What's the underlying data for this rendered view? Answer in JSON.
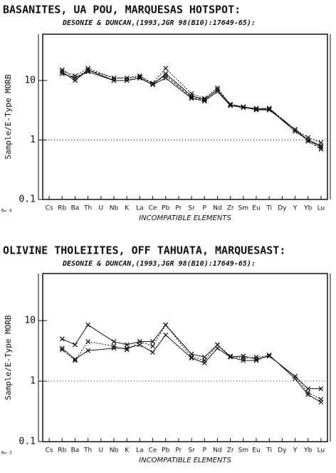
{
  "chart_data": [
    {
      "type": "line",
      "title": "BASANITES, UA POU, MARQUESAS HOTSPOT:",
      "subtitle": "DESONIE & DUNCAN,(1993,JGR 98(B10):17649-65):",
      "y_label": "Sample/E-Type MORB",
      "x_label": "INCOMPATIBLE ELEMENTS",
      "note": "N= 4",
      "categories": [
        "Cs",
        "Rb",
        "Ba",
        "Th",
        "U",
        "Nb",
        "K",
        "La",
        "Ce",
        "Pb",
        "Pr",
        "Sr",
        "P",
        "Nd",
        "Zr",
        "Sm",
        "Eu",
        "Ti",
        "Dy",
        "Y",
        "Yb",
        "Lu"
      ],
      "log_scale": true,
      "ylim": [
        0.1,
        60
      ],
      "yticks": [
        0.1,
        1,
        10
      ],
      "reference_line": 1,
      "color": "#111111",
      "series": [
        {
          "values": [
            null,
            14,
            10,
            15,
            null,
            10,
            10,
            11,
            8.5,
            11,
            null,
            5,
            4.5,
            6.5,
            3.8,
            3.6,
            3.2,
            3.2,
            null,
            1.5,
            1.0,
            0.75
          ]
        },
        {
          "values": [
            null,
            15,
            12,
            16,
            null,
            11,
            11,
            12,
            9,
            16,
            null,
            6,
            5,
            7.5,
            4,
            3.6,
            3.4,
            3.4,
            null,
            1.5,
            1.1,
            0.9
          ]
        },
        {
          "values": [
            null,
            13,
            11,
            14,
            null,
            10,
            10,
            11,
            8.5,
            13,
            null,
            5.5,
            4.8,
            7,
            3.8,
            3.5,
            3.3,
            3.3,
            null,
            1.4,
            1.0,
            0.8
          ]
        },
        {
          "values": [
            null,
            15,
            11,
            15,
            null,
            11,
            11,
            11.5,
            9,
            12,
            null,
            5.2,
            4.7,
            7,
            3.9,
            3.6,
            3.3,
            3.4,
            null,
            1.5,
            0.95,
            0.7
          ]
        }
      ]
    },
    {
      "type": "line",
      "title": "OLIVINE THOLEIITES, OFF TAHUATA, MARQUESAST:",
      "subtitle": "DESONIE & DUNCAN,(1993,JGR 98(B10):17649-65):",
      "y_label": "Sample/E-Type MORB",
      "x_label": "INCOMPATIBLE ELEMENTS",
      "note": "N= 3",
      "categories": [
        "Cs",
        "Rb",
        "Ba",
        "Th",
        "U",
        "Nb",
        "K",
        "La",
        "Ce",
        "Pb",
        "Pr",
        "Sr",
        "P",
        "Nd",
        "Zr",
        "Sm",
        "Eu",
        "Ti",
        "Dy",
        "Y",
        "Yb",
        "Lu"
      ],
      "log_scale": true,
      "ylim": [
        0.1,
        60
      ],
      "yticks": [
        0.1,
        1,
        10
      ],
      "reference_line": 1,
      "color": "#111111",
      "series": [
        {
          "values": [
            null,
            5,
            4,
            8.5,
            null,
            4.5,
            4,
            4.5,
            4.5,
            8.5,
            null,
            2.8,
            2.5,
            4,
            2.5,
            2.6,
            2.3,
            2.6,
            null,
            1.2,
            0.75,
            0.75
          ]
        },
        {
          "values": [
            null,
            3.3,
            2.2,
            4.5,
            null,
            3.8,
            3.3,
            4.5,
            3.8,
            8.5,
            null,
            2.5,
            2.2,
            4,
            2.6,
            2.4,
            2.5,
            2.6,
            null,
            1.2,
            0.65,
            0.5
          ]
        },
        {
          "values": [
            null,
            3.5,
            2.3,
            3.2,
            null,
            3.5,
            3.5,
            4,
            3,
            5.8,
            null,
            2.4,
            2.0,
            3.5,
            2.5,
            2.2,
            2.2,
            2.7,
            null,
            1.1,
            0.6,
            0.45
          ]
        }
      ]
    }
  ]
}
